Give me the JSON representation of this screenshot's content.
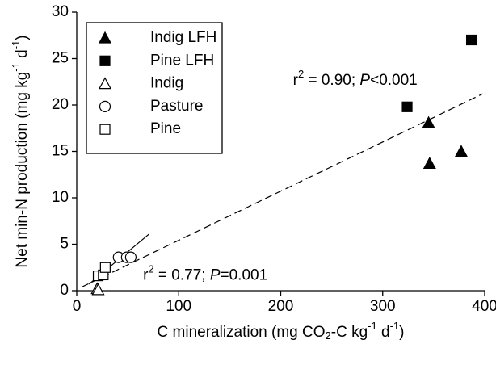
{
  "chart_data": {
    "type": "scatter",
    "x_label": [
      {
        "text": "C mineralization (mg CO"
      },
      {
        "text": "2",
        "sub": true
      },
      {
        "text": "-C kg"
      },
      {
        "text": "-1",
        "sup": true
      },
      {
        "text": " d"
      },
      {
        "text": "-1",
        "sup": true
      },
      {
        "text": ")"
      }
    ],
    "y_label": [
      {
        "text": "Net min-N production (mg kg"
      },
      {
        "text": "-1",
        "sup": true
      },
      {
        "text": " d"
      },
      {
        "text": "-1",
        "sup": true
      },
      {
        "text": ")"
      }
    ],
    "xlim": [
      0,
      400
    ],
    "xticks": [
      0,
      100,
      200,
      300,
      400
    ],
    "ylim": [
      0,
      30
    ],
    "yticks": [
      0,
      5,
      10,
      15,
      20,
      25,
      30
    ],
    "series": [
      {
        "name": "Indig LFH",
        "marker": "triangle",
        "filled": true,
        "color": "#000000",
        "x": [
          345,
          346,
          377
        ],
        "values": [
          18.1,
          13.7,
          15.0
        ]
      },
      {
        "name": "Pine LFH",
        "marker": "square",
        "filled": true,
        "color": "#000000",
        "x": [
          324,
          387
        ],
        "values": [
          19.8,
          27.0
        ]
      },
      {
        "name": "Indig",
        "marker": "triangle",
        "filled": false,
        "color": "#000000",
        "x": [
          20,
          21
        ],
        "values": [
          0.2,
          0.1
        ]
      },
      {
        "name": "Pasture",
        "marker": "circle",
        "filled": false,
        "color": "#000000",
        "x": [
          41,
          49,
          53
        ],
        "values": [
          3.6,
          3.6,
          3.6
        ]
      },
      {
        "name": "Pine",
        "marker": "square",
        "filled": false,
        "color": "#000000",
        "x": [
          21,
          26,
          28
        ],
        "values": [
          1.6,
          1.7,
          2.5
        ]
      }
    ],
    "fit_lines": [
      {
        "dashed": true,
        "x": [
          5,
          398
        ],
        "values": [
          0.4,
          21.2
        ]
      },
      {
        "dashed": false,
        "x": [
          12,
          71
        ],
        "values": [
          0.7,
          6.1
        ]
      }
    ],
    "annotations": [
      {
        "x": 212,
        "y": 22.6,
        "parts": [
          {
            "text": "r"
          },
          {
            "text": "2",
            "sup": true
          },
          {
            "text": " = 0.90; "
          },
          {
            "text": "P",
            "italic": true
          },
          {
            "text": "<0.001"
          }
        ]
      },
      {
        "x": 65,
        "y": 1.6,
        "parts": [
          {
            "text": "r"
          },
          {
            "text": "2",
            "sup": true
          },
          {
            "text": " = 0.77; "
          },
          {
            "text": "P",
            "italic": true
          },
          {
            "text": "=0.001"
          }
        ]
      }
    ]
  }
}
